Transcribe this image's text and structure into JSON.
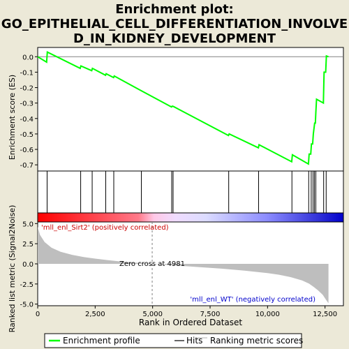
{
  "chart_data": {
    "type": "line",
    "title": "Enrichment plot: GO_EPITHELIAL_CELL_DIFFERENTIATION_INVOLVED_IN_KIDNEY_DEVELOPMENT",
    "title_lines": [
      "Enrichment plot:",
      "GO_EPITHELIAL_CELL_DIFFERENTIATION_INVOLVE",
      "D_IN_KIDNEY_DEVELOPMENT"
    ],
    "es_panel": {
      "ylabel": "Enrichment score (ES)",
      "ylim": [
        -0.74,
        0.06
      ],
      "yticks": [
        0.0,
        -0.1,
        -0.2,
        -0.3,
        -0.4,
        -0.5,
        -0.6,
        -0.7
      ],
      "ytick_labels": [
        "0.0",
        "-0.1",
        "-0.2",
        "-0.3",
        "-0.4",
        "-0.5",
        "-0.6",
        "-0.7"
      ],
      "series": [
        {
          "name": "Enrichment profile",
          "color": "#00ff00",
          "x": [
            0,
            390,
            420,
            1850,
            1880,
            2350,
            2380,
            2950,
            2980,
            3300,
            3330,
            4500,
            5820,
            5850,
            5900,
            8300,
            8330,
            9600,
            9630,
            11050,
            11080,
            11780,
            11810,
            11880,
            11910,
            11960,
            11990,
            12050,
            12080,
            12100,
            12130,
            12430,
            12460,
            12530,
            12560,
            12650
          ],
          "y": [
            0.0,
            -0.035,
            0.03,
            -0.075,
            -0.06,
            -0.09,
            -0.075,
            -0.12,
            -0.11,
            -0.135,
            -0.125,
            -0.22,
            -0.325,
            -0.32,
            -0.322,
            -0.51,
            -0.5,
            -0.59,
            -0.57,
            -0.68,
            -0.635,
            -0.695,
            -0.63,
            -0.63,
            -0.565,
            -0.565,
            -0.5,
            -0.43,
            -0.43,
            -0.36,
            -0.275,
            -0.3,
            -0.1,
            -0.1,
            0.005,
            0.0
          ]
        }
      ]
    },
    "hits_panel": {
      "hit_positions": [
        410,
        1870,
        2370,
        2960,
        3310,
        4510,
        5830,
        5890,
        8310,
        9610,
        11060,
        11790,
        11900,
        11980,
        12040,
        12100,
        12440,
        12550
      ],
      "hit_color": "#000000"
    },
    "color_bar": {
      "from_color": "#ff0000",
      "to_color": "#0000ff"
    },
    "metric_panel": {
      "ylabel": "Ranked list metric (Signal2Noise)",
      "ylim": [
        -5.2,
        5.2
      ],
      "yticks": [
        5.0,
        2.5,
        0.0,
        -2.5,
        -5.0
      ],
      "ytick_labels": [
        "5.0",
        "2.5",
        "0.0",
        "-2.5",
        "-5.0"
      ],
      "fill_color": "#bebebe",
      "x": [
        0,
        100,
        300,
        600,
        1000,
        1500,
        2000,
        2500,
        3000,
        3500,
        4000,
        4500,
        4981,
        5500,
        6000,
        7000,
        8000,
        9000,
        10000,
        10500,
        11000,
        11500,
        11800,
        12000,
        12200,
        12400,
        12550,
        12650
      ],
      "y": [
        4.6,
        3.6,
        2.7,
        2.0,
        1.5,
        1.12,
        0.85,
        0.65,
        0.48,
        0.33,
        0.2,
        0.1,
        0.0,
        -0.1,
        -0.2,
        -0.4,
        -0.6,
        -0.85,
        -1.15,
        -1.35,
        -1.65,
        -2.05,
        -2.45,
        -2.85,
        -3.3,
        -3.85,
        -4.5,
        -4.9
      ],
      "positive_label": "'mll_enl_Sirt2' (positively correlated)",
      "negative_label": "'mll_enl_WT' (negatively correlated)",
      "zero_cross_label": "Zero cross at 4981",
      "zero_cross": 4981
    },
    "xaxis": {
      "xlabel": "Rank in Ordered Dataset",
      "xlim": [
        0,
        13300
      ],
      "xticks": [
        0,
        2500,
        5000,
        7500,
        10000,
        12500
      ],
      "xtick_labels": [
        "0",
        "2,500",
        "5,000",
        "7,500",
        "10,000",
        "12,500"
      ]
    },
    "legend": {
      "placement": "bottom",
      "items": [
        {
          "label": "Enrichment profile",
          "color": "#00ff00"
        },
        {
          "label": "Hits",
          "color": "#000000"
        },
        {
          "label": "Ranking metric scores",
          "color": "#bebebe"
        }
      ]
    }
  }
}
